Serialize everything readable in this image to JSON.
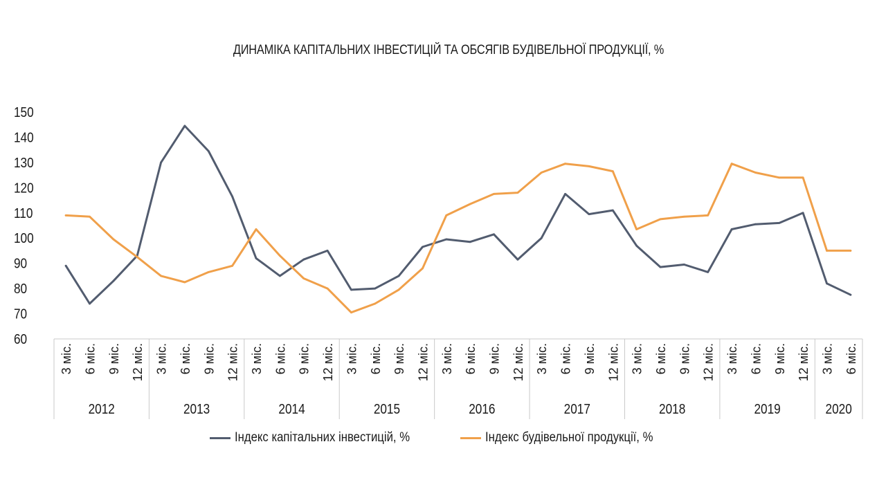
{
  "title": "ДИНАМІКА КАПІТАЛЬНИХ ІНВЕСТИЦІЙ ТА ОБСЯГІВ БУДІВЕЛЬНОЇ ПРОДУКЦІЇ, %",
  "colors": {
    "series1": "#525c6f",
    "series2": "#f0a04a",
    "axis": "#c9c9c9"
  },
  "chart_data": {
    "type": "line",
    "title": "ДИНАМІКА КАПІТАЛЬНИХ ІНВЕСТИЦІЙ ТА ОБСЯГІВ БУДІВЕЛЬНОЇ ПРОДУКЦІЇ, %",
    "ylim": [
      60,
      150
    ],
    "yticks": [
      60,
      70,
      80,
      90,
      100,
      110,
      120,
      130,
      140,
      150
    ],
    "grid": false,
    "legend_position": "bottom",
    "groups": [
      {
        "year": "2012",
        "periods": [
          "3 міс.",
          "6 міс.",
          "9 міс.",
          "12 міс."
        ]
      },
      {
        "year": "2013",
        "periods": [
          "3 міс.",
          "6 міс.",
          "9 міс.",
          "12 міс."
        ]
      },
      {
        "year": "2014",
        "periods": [
          "3 міс.",
          "6 міс.",
          "9 міс.",
          "12 міс."
        ]
      },
      {
        "year": "2015",
        "periods": [
          "3 міс.",
          "6 міс.",
          "9 міс.",
          "12 міс."
        ]
      },
      {
        "year": "2016",
        "periods": [
          "3 міс.",
          "6 міс.",
          "9 міс.",
          "12 міс."
        ]
      },
      {
        "year": "2017",
        "periods": [
          "3 міс.",
          "6 міс.",
          "9 міс.",
          "12 міс."
        ]
      },
      {
        "year": "2018",
        "periods": [
          "3 міс.",
          "6 міс.",
          "9 міс.",
          "12 міс."
        ]
      },
      {
        "year": "2019",
        "periods": [
          "3 міс.",
          "6 міс.",
          "9 міс.",
          "12 міс."
        ]
      },
      {
        "year": "2020",
        "periods": [
          "3 міс.",
          "6 міс."
        ]
      }
    ],
    "series": [
      {
        "name": "Індекс капітальних інвестицій, %",
        "values": [
          89,
          74,
          83,
          93,
          130,
          144.5,
          134.5,
          116.5,
          92,
          85,
          91.5,
          95,
          79.5,
          80,
          85,
          96.5,
          99.5,
          98.5,
          101.5,
          91.5,
          100,
          117.5,
          109.5,
          111,
          97,
          88.5,
          89.5,
          86.5,
          103.5,
          105.5,
          106,
          110,
          82,
          77.5
        ]
      },
      {
        "name": "Індекс будівельної продукції, %",
        "values": [
          109,
          108.5,
          99.5,
          92.5,
          85,
          82.5,
          86.5,
          89,
          103.5,
          93,
          84,
          80,
          70.5,
          74,
          79.5,
          88,
          109,
          113.5,
          117.5,
          118,
          126,
          129.5,
          128.5,
          126.5,
          103.5,
          107.5,
          108.5,
          109,
          129.5,
          126,
          124,
          124,
          95,
          95
        ]
      }
    ]
  }
}
